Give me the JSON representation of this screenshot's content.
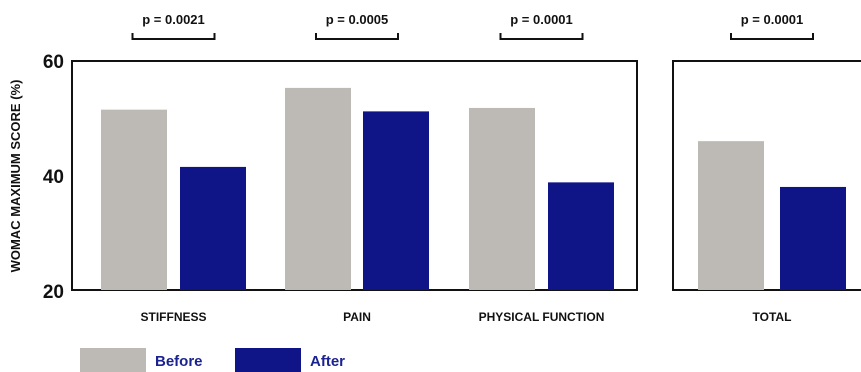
{
  "chart_data": {
    "type": "bar",
    "title": "",
    "xlabel": "",
    "ylabel": "WOMAC MAXIMUM SCORE (%)",
    "ylim": [
      20,
      60
    ],
    "yticks": [
      "20",
      "40",
      "60"
    ],
    "grid": false,
    "legend_position": "bottom-left",
    "series_names": [
      "Before",
      "After"
    ],
    "colors": {
      "before": "#bdb9b4",
      "after": "#0f1487",
      "legend_text": "#1b2391"
    },
    "panels": [
      {
        "groups": [
          {
            "category": "STIFFNESS",
            "before": 51.5,
            "after": 41.5,
            "pvalue": "p = 0.0021"
          },
          {
            "category": "PAIN",
            "before": 55.3,
            "after": 51.2,
            "pvalue": "p = 0.0005"
          },
          {
            "category": "PHYSICAL FUNCTION",
            "before": 51.8,
            "after": 38.8,
            "pvalue": "p = 0.0001"
          }
        ]
      },
      {
        "groups": [
          {
            "category": "TOTAL",
            "before": 46.0,
            "after": 38.0,
            "pvalue": "p = 0.0001"
          }
        ]
      }
    ]
  }
}
